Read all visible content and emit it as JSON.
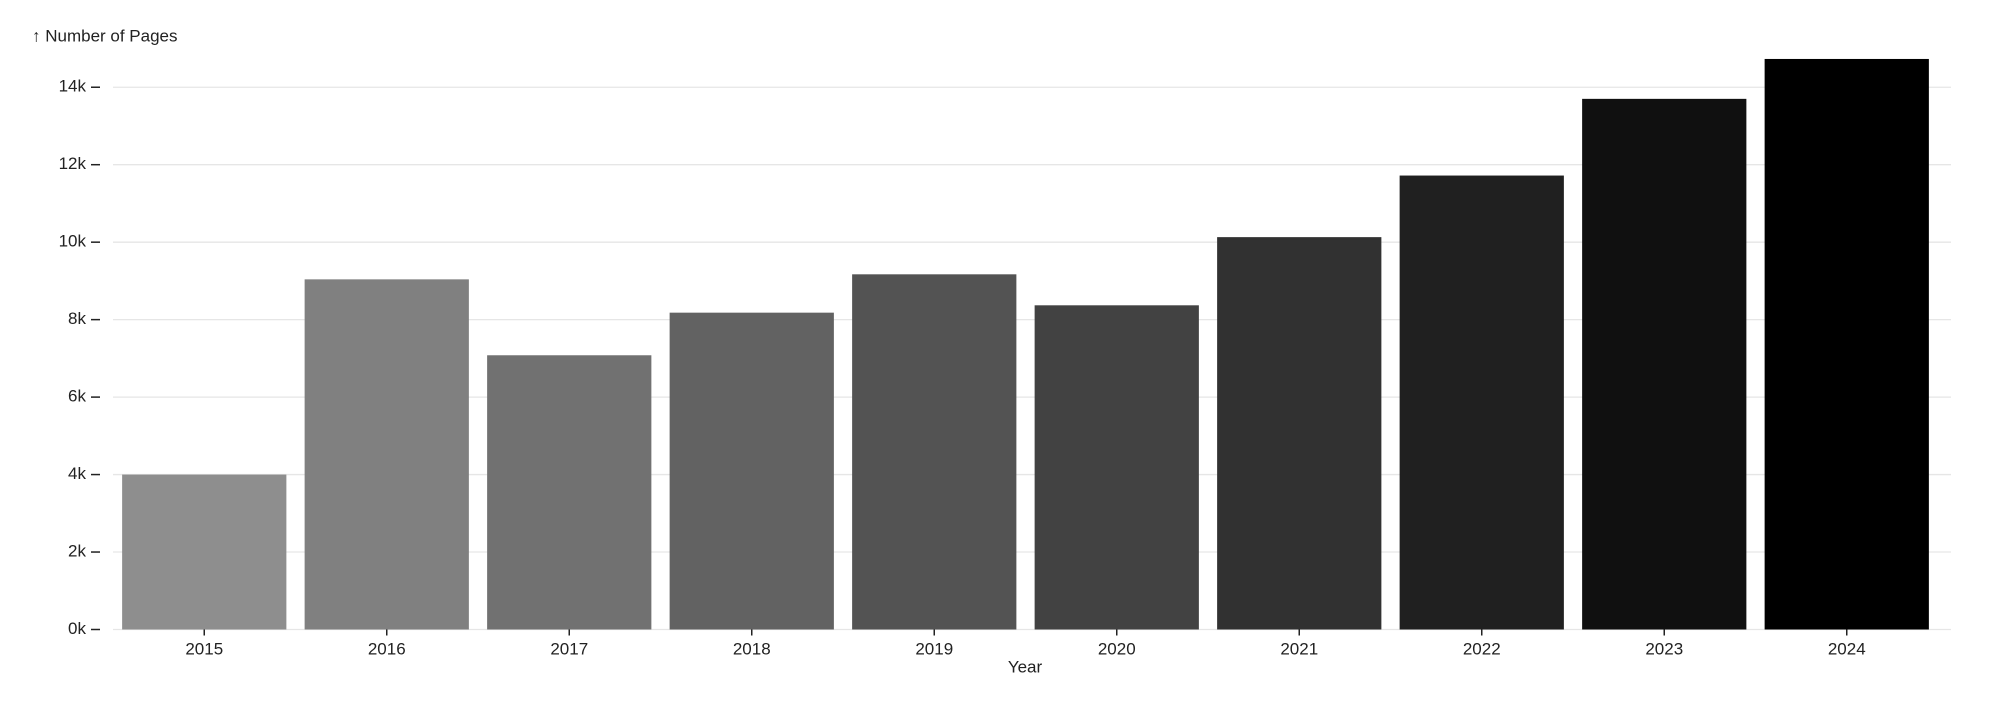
{
  "chart_data": {
    "type": "bar",
    "y_label": "↑ Number of Pages",
    "x_label": "Year",
    "categories": [
      "2015",
      "2016",
      "2017",
      "2018",
      "2019",
      "2020",
      "2021",
      "2022",
      "2023",
      "2024"
    ],
    "values": [
      4000,
      9040,
      7080,
      8180,
      9170,
      8370,
      10130,
      11720,
      13700,
      14730
    ],
    "colors": [
      "#8e8e8e",
      "#808080",
      "#717171",
      "#626262",
      "#535353",
      "#424242",
      "#313131",
      "#202020",
      "#101010",
      "#000000"
    ],
    "ylim": [
      0,
      15000
    ],
    "yticks": [
      {
        "value": 0,
        "label": "0k"
      },
      {
        "value": 2000,
        "label": "2k"
      },
      {
        "value": 4000,
        "label": "4k"
      },
      {
        "value": 6000,
        "label": "6k"
      },
      {
        "value": 8000,
        "label": "8k"
      },
      {
        "value": 10000,
        "label": "10k"
      },
      {
        "value": 12000,
        "label": "12k"
      },
      {
        "value": 14000,
        "label": "14k"
      }
    ],
    "grid": true
  }
}
